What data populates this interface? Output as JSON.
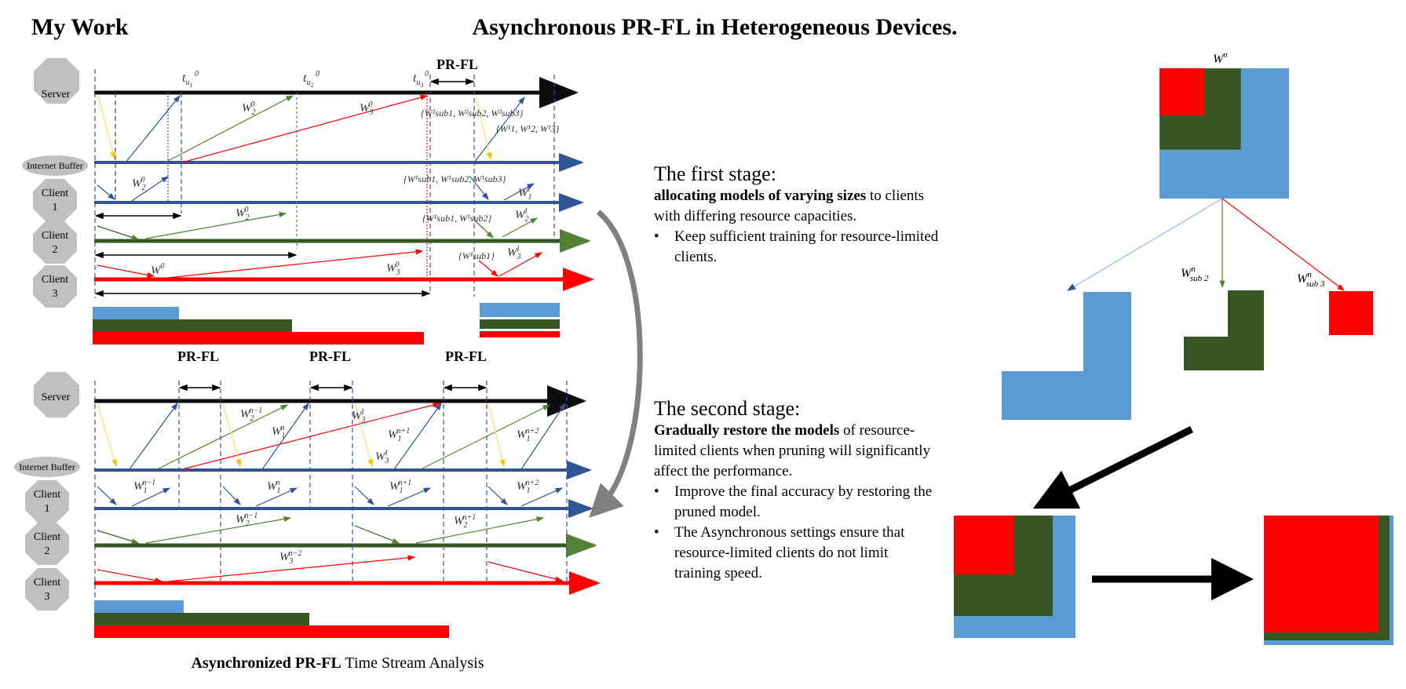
{
  "header": {
    "my_work": "My Work",
    "title": "Asynchronous PR-FL in Heterogeneous Devices."
  },
  "nodes": {
    "server": "Server",
    "buffer": "Internet Buffer",
    "client1_a": "Client",
    "client1_b": "1",
    "client2_a": "Client",
    "client2_b": "2",
    "client3_a": "Client",
    "client3_b": "3"
  },
  "top_timeline": {
    "prfl_top": "PR-FL",
    "t1": "t",
    "t1_sub": "u",
    "t1_sub2": "1",
    "t1_sup": "0",
    "t2": "t",
    "t2_sub": "u",
    "t2_sub2": "2",
    "t2_sup": "0",
    "t3": "t",
    "t3_sub": "u",
    "t3_sub2": "3",
    "t3_sup": "0",
    "w2_0_a": "W",
    "w2_0_a_sub": "2",
    "w2_0_a_sup": "0",
    "w3_0_a": "W",
    "w3_0_a_sub": "3",
    "w3_0_a_sup": "0",
    "set_a": "{W²sub1, W²sub2, W²sub3}",
    "set_b": "{W¹1, W¹2, W¹3}",
    "set_c": "{W¹sub1, W¹sub2, W¹sub3}",
    "set_d": "{W¹sub1, W¹sub2}",
    "set_e": "{W¹sub1}",
    "w2_0_b": "W",
    "w2_0_b_sub": "2",
    "w2_0_b_sup": "0",
    "w2_0_c": "W",
    "w2_0_c_sub": "2",
    "w2_0_c_sup": "0",
    "w0": "W",
    "w0_sup": "0",
    "w3_0_b": "W",
    "w3_0_b_sub": "3",
    "w3_0_b_sup": "0",
    "w1_1": "W",
    "w1_1_sub": "1",
    "w1_1_sup": "1",
    "w2_1": "W",
    "w2_1_sub": "2",
    "w2_1_sup": "1",
    "w3_1": "W",
    "w3_1_sub": "3",
    "w3_1_sup": "1"
  },
  "prfl_labels": [
    "PR-FL",
    "PR-FL",
    "PR-FL"
  ],
  "bottom_timeline": {
    "w2_n1": "W",
    "w2_n1_sub": "2",
    "w2_n1_sup": "n−1",
    "w1_n_a": "W",
    "w1_n_a_sub": "1",
    "w1_n_a_sup": "n",
    "w3_1": "W",
    "w3_1_sub": "3",
    "w3_1_sup": "1",
    "w1_np1_a": "W",
    "w1_np1_a_sub": "1",
    "w1_np1_a_sup": "n+1",
    "w3_1_b": "W",
    "w3_1_b_sub": "3",
    "w3_1_b_sup": "1",
    "w1_np2_a": "W",
    "w1_np2_a_sub": "1",
    "w1_np2_a_sup": "n+2",
    "w1_nm1": "W",
    "w1_nm1_sub": "1",
    "w1_nm1_sup": "n−1",
    "w1_n_b": "W",
    "w1_n_b_sub": "1",
    "w1_n_b_sup": "n",
    "w1_np1_b": "W",
    "w1_np1_b_sub": "1",
    "w1_np1_b_sup": "n+1",
    "w1_np2_b": "W",
    "w1_np2_b_sub": "1",
    "w1_np2_b_sup": "n+2",
    "w2_nm1_b": "W",
    "w2_nm1_b_sub": "2",
    "w2_nm1_b_sup": "n−1",
    "w2_np1": "W",
    "w2_np1_sub": "2",
    "w2_np1_sup": "n+1",
    "w3_nm2": "W",
    "w3_nm2_sub": "3",
    "w3_nm2_sup": "n−2"
  },
  "stage1": {
    "heading": "The first stage:",
    "bold": "allocating models of varying sizes",
    "rest": " to clients with differing resource capacities.",
    "bullet": "Keep sufficient training for resource-limited clients."
  },
  "stage2": {
    "heading": "The second stage:",
    "bold": "Gradually restore the models",
    "rest": " of resource-limited clients when pruning will significantly affect the performance.",
    "bullet1": "Improve the final accuracy by restoring the pruned model.",
    "bullet2": "The Asynchronous settings ensure that resource-limited clients do not limit training speed."
  },
  "caption": {
    "bold": "Asynchronized PR-FL",
    "rest": " Time Stream Analysis"
  },
  "right_panel": {
    "wn": "W",
    "wn_sup": "n",
    "wsub2": "W",
    "wsub2_sup": "n",
    "wsub2_sub": "sub 2",
    "wsub3": "W",
    "wsub3_sup": "n",
    "wsub3_sub": "sub 3"
  },
  "colors": {
    "blue": "#5b9bd5",
    "green": "#375623",
    "red": "#ff0000",
    "navy": "#2f5597",
    "dark": "#0d0d0d",
    "gray": "#bfbfbf",
    "yellow": "#ffd966"
  }
}
